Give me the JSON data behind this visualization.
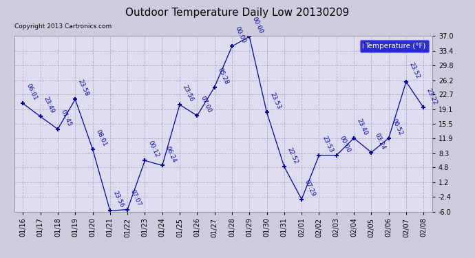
{
  "title": "Outdoor Temperature Daily Low 20130209",
  "copyright": "Copyright 2013 Cartronics.com",
  "legend_label": "Temperature (°F)",
  "bg_color": "#ccccdd",
  "plot_bg_color": "#ddddef",
  "line_color": "#0000aa",
  "grid_color": "#aaaacc",
  "x_labels": [
    "01/16",
    "01/17",
    "01/18",
    "01/19",
    "01/20",
    "01/21",
    "01/22",
    "01/23",
    "01/24",
    "01/25",
    "01/26",
    "01/27",
    "01/28",
    "01/29",
    "01/30",
    "01/31",
    "02/01",
    "02/02",
    "02/03",
    "02/04",
    "02/05",
    "02/06",
    "02/07",
    "02/08"
  ],
  "y_values": [
    20.5,
    17.3,
    14.2,
    21.5,
    9.3,
    -5.8,
    -5.5,
    6.5,
    5.3,
    20.2,
    17.5,
    24.5,
    34.5,
    36.9,
    18.3,
    5.0,
    -3.0,
    7.8,
    7.8,
    12.0,
    8.5,
    12.0,
    25.8,
    19.5
  ],
  "point_labels": [
    "06:01",
    "23:49",
    "01:45",
    "23:58",
    "08:01",
    "23:56",
    "07:07",
    "00:12",
    "06:24",
    "23:56",
    "07:00",
    "05:28",
    "00:00",
    "00:00",
    "23:53",
    "22:52",
    "07:29",
    "23:53",
    "00:00",
    "23:40",
    "03:24",
    "06:52",
    "23:52",
    "23:22"
  ],
  "ylim": [
    -6.0,
    37.0
  ],
  "yticks": [
    -6.0,
    -2.4,
    1.2,
    4.8,
    8.3,
    11.9,
    15.5,
    19.1,
    22.7,
    26.2,
    29.8,
    33.4,
    37.0
  ],
  "ytick_labels": [
    "-6.0",
    "-2.4",
    "1.2",
    "4.8",
    "8.3",
    "11.9",
    "15.5",
    "19.1",
    "22.7",
    "26.2",
    "29.8",
    "33.4",
    "37.0"
  ],
  "title_fontsize": 11,
  "label_fontsize": 6.5,
  "tick_fontsize": 7,
  "legend_fontsize": 7.5
}
